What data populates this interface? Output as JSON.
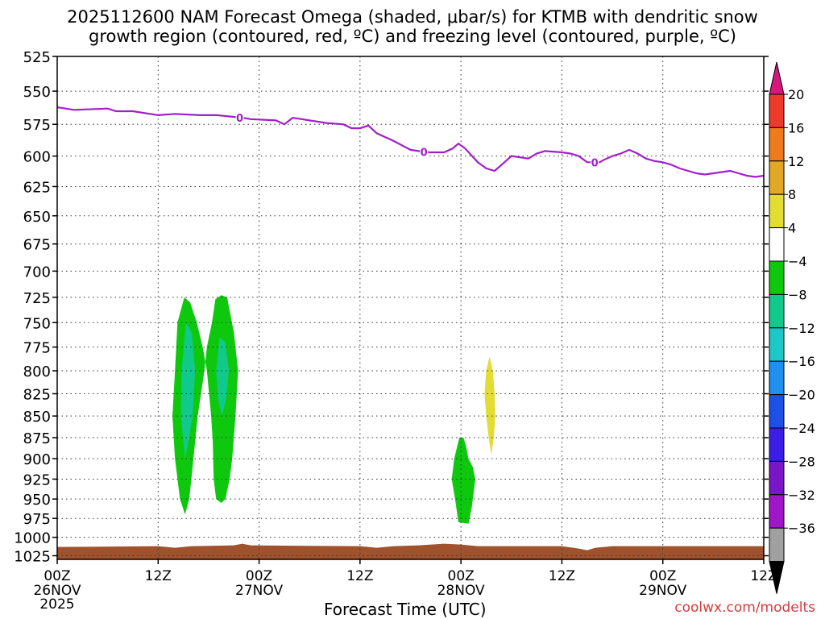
{
  "title_line1": "2025112600 NAM Forecast Omega (shaded, μbar/s) for KTMB with dendritic snow",
  "title_line2": "growth region (contoured, red, ºC) and freezing level (contoured, purple, ºC)",
  "credit": "coolwx.com/modelts",
  "chart_data": {
    "type": "contour",
    "xlabel": "Forecast Time (UTC)",
    "ylabel": "",
    "y_scale": "log",
    "ylim": [
      525,
      1030
    ],
    "xlim_hours": [
      0,
      84
    ],
    "y_ticks": [
      525,
      550,
      575,
      600,
      625,
      650,
      675,
      700,
      725,
      750,
      775,
      800,
      825,
      850,
      875,
      900,
      925,
      950,
      975,
      1000,
      1025
    ],
    "x_ticks": [
      {
        "hour": 0,
        "label": "00Z",
        "date": "26NOV",
        "year": "2025"
      },
      {
        "hour": 12,
        "label": "12Z",
        "date": "",
        "year": ""
      },
      {
        "hour": 24,
        "label": "00Z",
        "date": "27NOV",
        "year": ""
      },
      {
        "hour": 36,
        "label": "12Z",
        "date": "",
        "year": ""
      },
      {
        "hour": 48,
        "label": "00Z",
        "date": "28NOV",
        "year": ""
      },
      {
        "hour": 60,
        "label": "12Z",
        "date": "",
        "year": ""
      },
      {
        "hour": 72,
        "label": "00Z",
        "date": "29NOV",
        "year": ""
      },
      {
        "hour": 84,
        "label": "12Z",
        "date": "",
        "year": ""
      }
    ],
    "grid": true,
    "colorbar": {
      "labels": [
        "20",
        "16",
        "12",
        "8",
        "4",
        "−4",
        "−8",
        "−12",
        "−16",
        "−20",
        "−24",
        "−28",
        "−32",
        "−36"
      ],
      "colors": [
        "#d6177d",
        "#ee3a2c",
        "#ee7b1e",
        "#e2a726",
        "#e2dc33",
        "#ffffff",
        "#0ec80e",
        "#10c98a",
        "#1ec7c7",
        "#1e90f0",
        "#1e50e6",
        "#3a1ee6",
        "#7a16c8",
        "#a016c8",
        "#a0a0a0",
        "#000000"
      ]
    },
    "freezing_level": {
      "label": "0",
      "color": "#a020c8",
      "points": [
        [
          0,
          562
        ],
        [
          2,
          564
        ],
        [
          6,
          563
        ],
        [
          7,
          565
        ],
        [
          9,
          565
        ],
        [
          12,
          568
        ],
        [
          14,
          567
        ],
        [
          17,
          568
        ],
        [
          19,
          568
        ],
        [
          22,
          570
        ],
        [
          23,
          571
        ],
        [
          26,
          572
        ],
        [
          27,
          575
        ],
        [
          28,
          570
        ],
        [
          32,
          574
        ],
        [
          34,
          575
        ],
        [
          35,
          578
        ],
        [
          36,
          578
        ],
        [
          37,
          576
        ],
        [
          38,
          582
        ],
        [
          40,
          588
        ],
        [
          42,
          595
        ],
        [
          44,
          597
        ],
        [
          45,
          597
        ],
        [
          46,
          597
        ],
        [
          47,
          594
        ],
        [
          47.7,
          590
        ],
        [
          48.5,
          594
        ],
        [
          50,
          605
        ],
        [
          51,
          610
        ],
        [
          52,
          612
        ],
        [
          53,
          606
        ],
        [
          54,
          600
        ],
        [
          56,
          602
        ],
        [
          57,
          598
        ],
        [
          58,
          596
        ],
        [
          60,
          597
        ],
        [
          61,
          598
        ],
        [
          62,
          600
        ],
        [
          63,
          605
        ],
        [
          64.5,
          605
        ],
        [
          65,
          603
        ],
        [
          66,
          600
        ],
        [
          67,
          598
        ],
        [
          68,
          595
        ],
        [
          69,
          598
        ],
        [
          70,
          602
        ],
        [
          71,
          604
        ],
        [
          72,
          605
        ],
        [
          73,
          607
        ],
        [
          74,
          610
        ],
        [
          75,
          612
        ],
        [
          76,
          614
        ],
        [
          77,
          615
        ],
        [
          78,
          614
        ],
        [
          79,
          613
        ],
        [
          80,
          612
        ],
        [
          81,
          614
        ],
        [
          82,
          616
        ],
        [
          83,
          617
        ],
        [
          84,
          616
        ]
      ],
      "label_hours": [
        21.7,
        43.6,
        63.9
      ]
    },
    "omega_regions": [
      {
        "value": -8,
        "color": "#0ec80e",
        "points": [
          [
            15.1,
            725
          ],
          [
            14.3,
            750
          ],
          [
            14.0,
            800
          ],
          [
            13.7,
            850
          ],
          [
            14.0,
            900
          ],
          [
            14.6,
            950
          ],
          [
            15.2,
            970
          ],
          [
            15.7,
            950
          ],
          [
            16.2,
            900
          ],
          [
            16.7,
            850
          ],
          [
            17.5,
            800
          ],
          [
            17.8,
            775
          ],
          [
            18.4,
            750
          ],
          [
            18.8,
            727
          ],
          [
            19.5,
            723
          ],
          [
            20.2,
            725
          ],
          [
            21.0,
            760
          ],
          [
            21.5,
            800
          ],
          [
            21.2,
            850
          ],
          [
            20.8,
            900
          ],
          [
            20.5,
            925
          ],
          [
            20.0,
            950
          ],
          [
            19.5,
            955
          ],
          [
            18.9,
            950
          ],
          [
            18.6,
            925
          ],
          [
            18.5,
            880
          ],
          [
            18.3,
            850
          ],
          [
            17.8,
            800
          ],
          [
            17.3,
            775
          ],
          [
            16.6,
            750
          ],
          [
            15.8,
            730
          ]
        ]
      },
      {
        "value": -12,
        "color": "#10c98a",
        "points": [
          [
            15.3,
            750
          ],
          [
            14.8,
            800
          ],
          [
            14.7,
            850
          ],
          [
            15.2,
            900
          ],
          [
            15.6,
            880
          ],
          [
            16.1,
            850
          ],
          [
            16.4,
            800
          ],
          [
            16.0,
            760
          ]
        ]
      },
      {
        "value": -12,
        "color": "#10c98a",
        "points": [
          [
            19.3,
            765
          ],
          [
            18.9,
            800
          ],
          [
            19.1,
            830
          ],
          [
            19.6,
            850
          ],
          [
            20.1,
            830
          ],
          [
            20.4,
            800
          ],
          [
            20.0,
            770
          ]
        ]
      },
      {
        "value": -8,
        "color": "#0ec80e",
        "points": [
          [
            47.8,
            875
          ],
          [
            47.2,
            900
          ],
          [
            46.9,
            925
          ],
          [
            47.3,
            950
          ],
          [
            47.7,
            980
          ],
          [
            48.9,
            982
          ],
          [
            49.3,
            960
          ],
          [
            49.7,
            925
          ],
          [
            49.4,
            910
          ],
          [
            48.9,
            900
          ],
          [
            48.6,
            885
          ],
          [
            48.3,
            875
          ]
        ]
      },
      {
        "value": 4,
        "color": "#e2dc33",
        "points": [
          [
            51.4,
            785
          ],
          [
            51.0,
            800
          ],
          [
            50.8,
            825
          ],
          [
            51.0,
            850
          ],
          [
            51.3,
            875
          ],
          [
            51.6,
            895
          ],
          [
            51.9,
            875
          ],
          [
            52.1,
            850
          ],
          [
            52.0,
            825
          ],
          [
            51.8,
            800
          ]
        ]
      }
    ],
    "terrain": {
      "color": "#a0522d",
      "top_pressure": 1012
    }
  }
}
